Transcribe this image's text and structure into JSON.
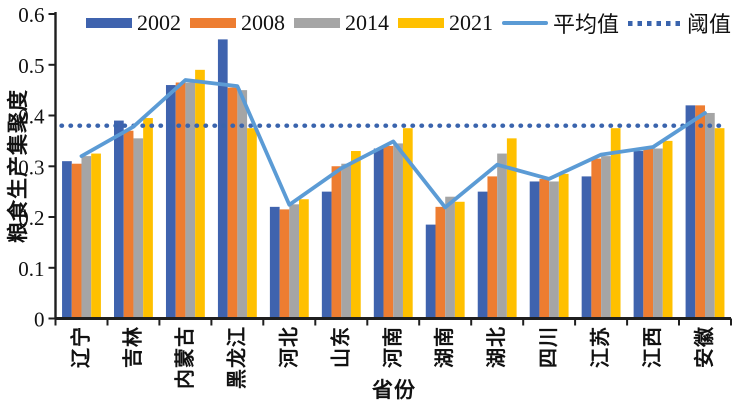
{
  "figure": {
    "xlabel": "省份",
    "ylabel": "粮食生产集聚度"
  },
  "colors": {
    "bar_2002": "#3F63AE",
    "bar_2008": "#ED7D31",
    "bar_2014": "#A5A5A5",
    "bar_2021": "#FFC000",
    "mean_line": "#5B9BD5",
    "threshold_dots": "#3A64AD",
    "axis": "#1f1f1f",
    "text": "#111111"
  },
  "chart_data": {
    "type": "bar",
    "title": "",
    "xlabel": "省份",
    "ylabel": "粮食生产集聚度",
    "ylim": [
      0,
      0.6
    ],
    "yticks": [
      0,
      0.1,
      0.2,
      0.3,
      0.4,
      0.5,
      0.6
    ],
    "grid": false,
    "legend_position": "top-inside",
    "categories": [
      "辽宁",
      "吉林",
      "内蒙古",
      "黑龙江",
      "河北",
      "山东",
      "河南",
      "湖南",
      "湖北",
      "四川",
      "江苏",
      "江西",
      "安徽"
    ],
    "series": [
      {
        "name": "2002",
        "kind": "bar",
        "color": "#3F63AE",
        "values": [
          0.31,
          0.39,
          0.46,
          0.55,
          0.22,
          0.25,
          0.335,
          0.185,
          0.25,
          0.27,
          0.28,
          0.33,
          0.42
        ]
      },
      {
        "name": "2008",
        "kind": "bar",
        "color": "#ED7D31",
        "values": [
          0.305,
          0.37,
          0.465,
          0.455,
          0.215,
          0.3,
          0.34,
          0.22,
          0.28,
          0.275,
          0.315,
          0.335,
          0.42
        ]
      },
      {
        "name": "2014",
        "kind": "bar",
        "color": "#A5A5A5",
        "values": [
          0.32,
          0.355,
          0.465,
          0.45,
          0.225,
          0.305,
          0.345,
          0.24,
          0.325,
          0.27,
          0.32,
          0.335,
          0.405
        ]
      },
      {
        "name": "2021",
        "kind": "bar",
        "color": "#FFC000",
        "values": [
          0.325,
          0.395,
          0.49,
          0.375,
          0.235,
          0.33,
          0.375,
          0.23,
          0.355,
          0.285,
          0.375,
          0.35,
          0.375
        ]
      },
      {
        "name": "平均值",
        "kind": "line",
        "color": "#5B9BD5",
        "values": [
          0.32,
          0.378,
          0.47,
          0.458,
          0.224,
          0.296,
          0.349,
          0.219,
          0.303,
          0.275,
          0.323,
          0.338,
          0.405
        ]
      },
      {
        "name": "阈值",
        "kind": "threshold",
        "color": "#3A64AD",
        "value": 0.38
      }
    ]
  }
}
